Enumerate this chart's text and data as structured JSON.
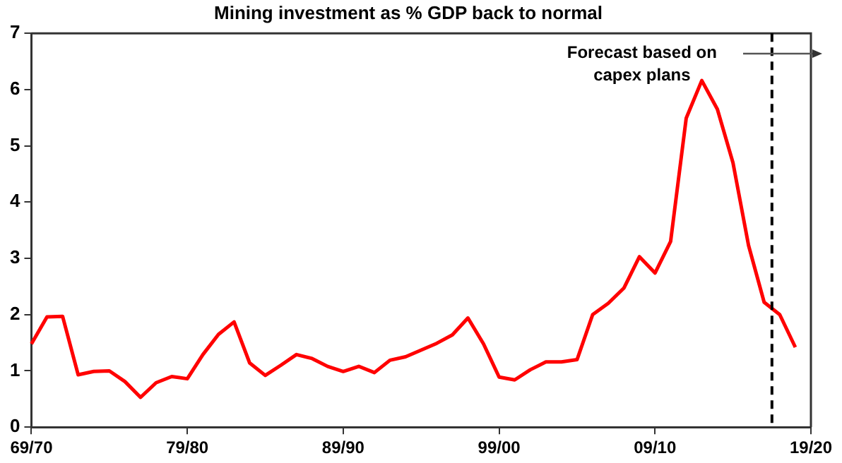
{
  "chart_data": {
    "type": "line",
    "title": "Mining investment as % GDP back to normal",
    "categories": [
      "69/70",
      null,
      null,
      null,
      null,
      null,
      null,
      null,
      null,
      null,
      "79/80",
      null,
      null,
      null,
      null,
      null,
      null,
      null,
      null,
      null,
      "89/90",
      null,
      null,
      null,
      null,
      null,
      null,
      null,
      null,
      null,
      "99/00",
      null,
      null,
      null,
      null,
      null,
      null,
      null,
      null,
      null,
      "09/10",
      null,
      null,
      null,
      null,
      null,
      null,
      null,
      null,
      null,
      "19/20"
    ],
    "series": [
      {
        "color": "#ff0000",
        "values": [
          1.48,
          1.96,
          1.97,
          0.93,
          0.99,
          1.0,
          0.81,
          0.53,
          0.79,
          0.9,
          0.86,
          1.29,
          1.65,
          1.87,
          1.14,
          0.92,
          1.1,
          1.29,
          1.22,
          1.08,
          0.99,
          1.08,
          0.97,
          1.19,
          1.25,
          1.37,
          1.49,
          1.64,
          1.94,
          1.48,
          0.89,
          0.84,
          1.02,
          1.16,
          1.16,
          1.2,
          2.0,
          2.2,
          2.47,
          3.03,
          2.74,
          3.3,
          5.49,
          6.16,
          5.65,
          4.7,
          3.23,
          2.22,
          2.0,
          1.42,
          null
        ]
      }
    ],
    "ylim": [
      0,
      7
    ],
    "yticks": [
      0,
      1,
      2,
      3,
      4,
      5,
      6,
      7
    ],
    "annotations": [
      "Forecast based on capex plans"
    ],
    "grid": false,
    "legend": false,
    "marker": "none",
    "line_style": "solid"
  }
}
